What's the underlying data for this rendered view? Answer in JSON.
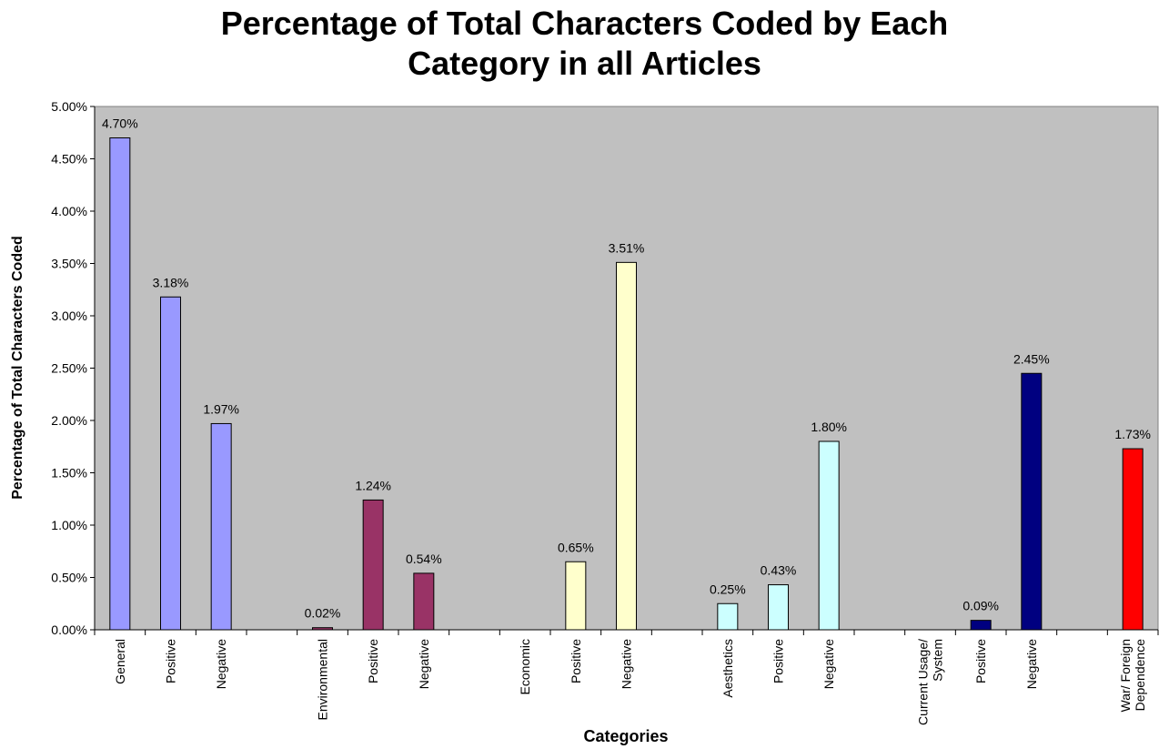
{
  "chart_data": {
    "type": "bar",
    "title_lines": [
      "Percentage of Total Characters Coded by Each",
      "Category in all Articles"
    ],
    "xlabel": "Categories",
    "ylabel": "Percentage of Total Characters Coded",
    "ylim": [
      0,
      5
    ],
    "yticks": [
      "0.00%",
      "0.50%",
      "1.00%",
      "1.50%",
      "2.00%",
      "2.50%",
      "3.00%",
      "3.50%",
      "4.00%",
      "4.50%",
      "5.00%"
    ],
    "plot_background": "#c0c0c0",
    "grid": false,
    "legend": "none",
    "categories": [
      [
        "General"
      ],
      [
        "Positive"
      ],
      [
        "Negative"
      ],
      [],
      [
        "Environmental"
      ],
      [
        "Positive"
      ],
      [
        "Negative"
      ],
      [],
      [
        "Economic"
      ],
      [
        "Positive"
      ],
      [
        "Negative"
      ],
      [],
      [
        "Aesthetics"
      ],
      [
        "Positive"
      ],
      [
        "Negative"
      ],
      [],
      [
        "Current Usage/",
        "System"
      ],
      [
        "Positive"
      ],
      [
        "Negative"
      ],
      [],
      [
        "War/ Foreign",
        "Dependence"
      ]
    ],
    "values": [
      4.7,
      3.18,
      1.97,
      null,
      0.02,
      1.24,
      0.54,
      null,
      null,
      0.65,
      3.51,
      null,
      0.25,
      0.43,
      1.8,
      null,
      null,
      0.09,
      2.45,
      null,
      1.73
    ],
    "data_labels": [
      "4.70%",
      "3.18%",
      "1.97%",
      "",
      "0.02%",
      "1.24%",
      "0.54%",
      "",
      "",
      "0.65%",
      "3.51%",
      "",
      "0.25%",
      "0.43%",
      "1.80%",
      "",
      "",
      "0.09%",
      "2.45%",
      "",
      "1.73%"
    ],
    "bar_colors": [
      "#9999ff",
      "#9999ff",
      "#9999ff",
      "",
      "#993366",
      "#993366",
      "#993366",
      "",
      "",
      "#ffffcc",
      "#ffffcc",
      "",
      "#ccffff",
      "#ccffff",
      "#ccffff",
      "",
      "",
      "#000080",
      "#000080",
      "",
      "#ff0000"
    ]
  }
}
